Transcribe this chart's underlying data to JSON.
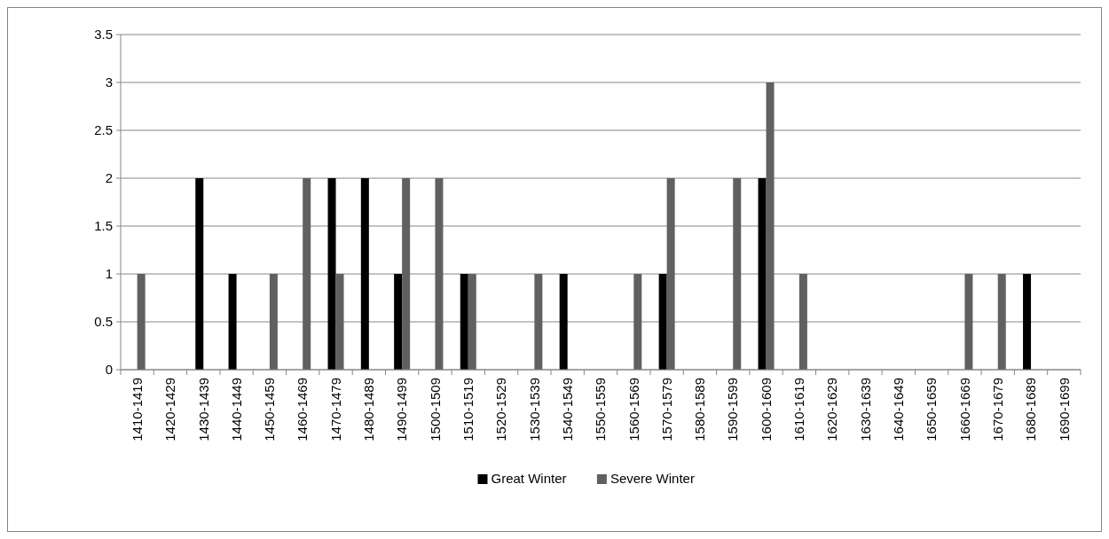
{
  "chart_data": {
    "type": "bar",
    "categories": [
      "1410-1419",
      "1420-1429",
      "1430-1439",
      "1440-1449",
      "1450-1459",
      "1460-1469",
      "1470-1479",
      "1480-1489",
      "1490-1499",
      "1500-1509",
      "1510-1519",
      "1520-1529",
      "1530-1539",
      "1540-1549",
      "1550-1559",
      "1560-1569",
      "1570-1579",
      "1580-1589",
      "1590-1599",
      "1600-1609",
      "1610-1619",
      "1620-1629",
      "1630-1639",
      "1640-1649",
      "1650-1659",
      "1660-1669",
      "1670-1679",
      "1680-1689",
      "1690-1699"
    ],
    "series": [
      {
        "name": "Great Winter",
        "color": "#000000",
        "values": [
          0,
          0,
          2,
          1,
          0,
          0,
          2,
          2,
          1,
          0,
          1,
          0,
          0,
          1,
          0,
          0,
          1,
          0,
          0,
          2,
          0,
          0,
          0,
          0,
          0,
          0,
          0,
          1,
          0
        ]
      },
      {
        "name": "Severe Winter",
        "color": "#606060",
        "values": [
          1,
          0,
          0,
          0,
          1,
          2,
          1,
          0,
          2,
          2,
          1,
          0,
          1,
          0,
          0,
          1,
          2,
          0,
          2,
          3,
          1,
          0,
          0,
          0,
          0,
          1,
          1,
          0,
          0
        ]
      }
    ],
    "ylim": [
      0,
      3.5
    ],
    "yticks": [
      0,
      0.5,
      1,
      1.5,
      2,
      2.5,
      3,
      3.5
    ],
    "grid": "y",
    "legend": "bottom"
  }
}
